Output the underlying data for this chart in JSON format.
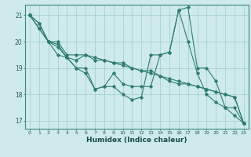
{
  "xlabel": "Humidex (Indice chaleur)",
  "background_color": "#ceeaea",
  "grid_color": "#a8d0d0",
  "line_color": "#2e7d6e",
  "xlim": [
    -0.5,
    23.5
  ],
  "ylim": [
    16.7,
    21.4
  ],
  "yticks": [
    17,
    18,
    19,
    20,
    21
  ],
  "xticks": [
    0,
    1,
    2,
    3,
    4,
    5,
    6,
    7,
    8,
    9,
    10,
    11,
    12,
    13,
    14,
    15,
    16,
    17,
    18,
    19,
    20,
    21,
    22,
    23
  ],
  "lines": [
    [
      21.0,
      20.7,
      20.0,
      20.0,
      19.5,
      19.5,
      19.5,
      19.4,
      19.3,
      19.2,
      19.1,
      19.0,
      18.9,
      18.8,
      18.7,
      18.6,
      18.5,
      18.4,
      18.3,
      18.2,
      18.1,
      18.0,
      17.9,
      16.9
    ],
    [
      21.0,
      20.7,
      20.0,
      19.5,
      19.4,
      19.0,
      19.0,
      18.2,
      18.3,
      18.3,
      18.0,
      17.8,
      17.9,
      19.5,
      19.5,
      19.6,
      21.2,
      21.3,
      19.0,
      19.0,
      18.5,
      17.5,
      17.5,
      16.9
    ],
    [
      21.0,
      20.5,
      20.0,
      19.9,
      19.4,
      19.0,
      18.8,
      18.2,
      18.3,
      18.8,
      18.4,
      18.3,
      18.3,
      18.3,
      19.5,
      19.6,
      21.2,
      20.0,
      18.8,
      18.0,
      17.7,
      17.5,
      17.2,
      16.9
    ],
    [
      21.0,
      20.5,
      20.0,
      19.8,
      19.4,
      19.3,
      19.5,
      19.3,
      19.3,
      19.2,
      19.2,
      19.0,
      18.9,
      18.9,
      18.7,
      18.5,
      18.4,
      18.4,
      18.3,
      18.2,
      18.1,
      18.0,
      17.9,
      16.9
    ]
  ]
}
